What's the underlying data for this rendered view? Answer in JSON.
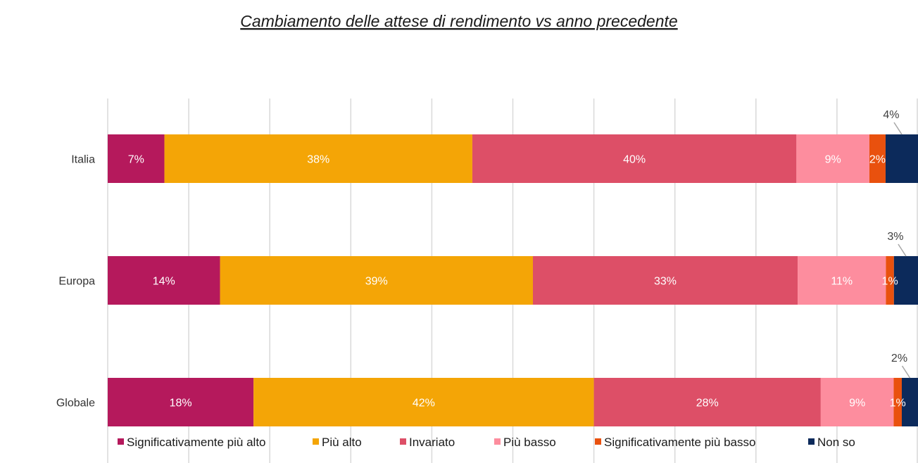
{
  "chart_data": {
    "type": "bar",
    "orientation": "horizontal",
    "stacked": true,
    "title": "Cambiamento delle attese di rendimento vs anno precedente",
    "categories": [
      "Italia",
      "Europa",
      "Globale"
    ],
    "series": [
      {
        "name": "Significativamente più alto",
        "color": "#b5195c",
        "values": [
          7,
          14,
          18
        ],
        "labels": [
          "7%",
          "14%",
          "18%"
        ]
      },
      {
        "name": "Più alto",
        "color": "#f4a506",
        "values": [
          38,
          39,
          42
        ],
        "labels": [
          "38%",
          "39%",
          "42%"
        ]
      },
      {
        "name": "Invariato",
        "color": "#dd4f67",
        "values": [
          40,
          33,
          28
        ],
        "labels": [
          "40%",
          "33%",
          "28%"
        ]
      },
      {
        "name": "Più basso",
        "color": "#fd8d9e",
        "values": [
          9,
          11,
          9
        ],
        "labels": [
          "9%",
          "11%",
          "9%"
        ]
      },
      {
        "name": "Significativamente più basso",
        "color": "#e9510e",
        "values": [
          2,
          1,
          1
        ],
        "labels": [
          "2%",
          "1%",
          "1%"
        ]
      },
      {
        "name": "Non so",
        "color": "#0c2a5b",
        "values": [
          4,
          3,
          2
        ],
        "labels": [
          "4%",
          "3%",
          "2%"
        ]
      }
    ],
    "xlim": [
      0,
      100
    ],
    "grid": true,
    "legend": "bottom"
  }
}
